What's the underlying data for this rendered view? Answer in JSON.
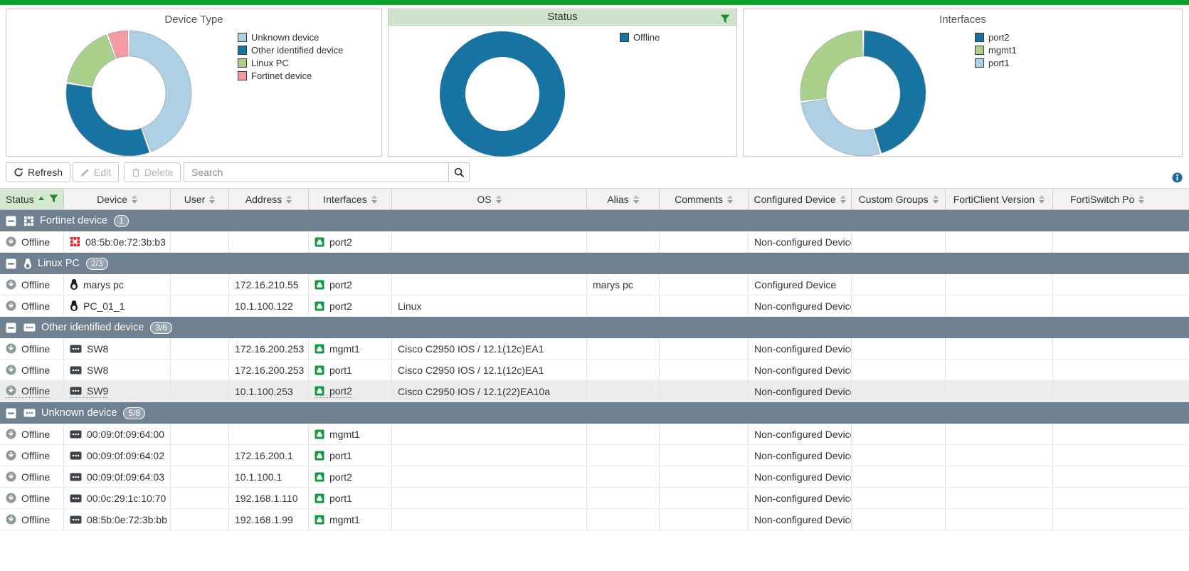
{
  "topbar": {
    "color": "#10a12d"
  },
  "charts": [
    {
      "title": "Device Type",
      "filtered": false,
      "chart_data": {
        "type": "pie",
        "donut": true,
        "slices": [
          {
            "label": "Unknown device",
            "percent": 44.4,
            "color": "#aed0e4"
          },
          {
            "label": "Other identified device",
            "percent": 33.3,
            "color": "#1773a2"
          },
          {
            "label": "Linux PC",
            "percent": 16.7,
            "color": "#a9d18c"
          },
          {
            "label": "Fortinet device",
            "percent": 5.6,
            "color": "#f59ba1"
          }
        ],
        "legend": [
          {
            "label": "Unknown device",
            "color": "#aed0e4"
          },
          {
            "label": "Other identified device",
            "color": "#1773a2"
          },
          {
            "label": "Linux PC",
            "color": "#a9d18c"
          },
          {
            "label": "Fortinet device",
            "color": "#f59ba1"
          }
        ],
        "legend_position": "right"
      }
    },
    {
      "title": "Status",
      "filtered": true,
      "chart_data": {
        "type": "pie",
        "donut": true,
        "slices": [
          {
            "label": "Offline",
            "percent": 100,
            "color": "#1773a2"
          }
        ],
        "legend": [
          {
            "label": "Offline",
            "color": "#1773a2"
          }
        ],
        "legend_position": "right"
      }
    },
    {
      "title": "Interfaces",
      "filtered": false,
      "chart_data": {
        "type": "pie",
        "donut": true,
        "slices": [
          {
            "label": "port2",
            "percent": 45.5,
            "color": "#1773a2"
          },
          {
            "label": "port1",
            "percent": 27.3,
            "color": "#aed0e4"
          },
          {
            "label": "mgmt1",
            "percent": 27.2,
            "color": "#a9d18c"
          }
        ],
        "legend": [
          {
            "label": "port2",
            "color": "#1773a2"
          },
          {
            "label": "mgmt1",
            "color": "#a9d18c"
          },
          {
            "label": "port1",
            "color": "#aed0e4"
          }
        ],
        "legend_position": "right"
      }
    }
  ],
  "toolbar": {
    "refresh_label": "Refresh",
    "edit_label": "Edit",
    "delete_label": "Delete",
    "search_placeholder": "Search",
    "search_value": ""
  },
  "table": {
    "columns": [
      {
        "key": "status",
        "label": "Status",
        "sorted": "asc",
        "filtered": true
      },
      {
        "key": "device",
        "label": "Device"
      },
      {
        "key": "user",
        "label": "User"
      },
      {
        "key": "address",
        "label": "Address"
      },
      {
        "key": "interfaces",
        "label": "Interfaces"
      },
      {
        "key": "os",
        "label": "OS"
      },
      {
        "key": "alias",
        "label": "Alias"
      },
      {
        "key": "comments",
        "label": "Comments"
      },
      {
        "key": "configured",
        "label": "Configured Device"
      },
      {
        "key": "custom_groups",
        "label": "Custom Groups"
      },
      {
        "key": "forticlient",
        "label": "FortiClient Version"
      },
      {
        "key": "fortiswitch",
        "label": "FortiSwitch Po"
      }
    ],
    "rows": [
      {
        "type": "group",
        "icon": "fortinet",
        "label": "Fortinet device",
        "badge": "1"
      },
      {
        "type": "device",
        "status": "Offline",
        "device": "08:5b:0e:72:3b:b3",
        "device_icon": "fortinet-red",
        "user": "",
        "address": "",
        "interface": "port2",
        "os": "",
        "alias": "",
        "comments": "",
        "configured": "Non-configured Device",
        "custom_groups": "",
        "forticlient": "",
        "fortiswitch": ""
      },
      {
        "type": "group",
        "icon": "linux",
        "label": "Linux PC",
        "badge": "2/3"
      },
      {
        "type": "device",
        "status": "Offline",
        "device": "marys pc",
        "device_icon": "penguin",
        "user": "",
        "address": "172.16.210.55",
        "interface": "port2",
        "os": "",
        "alias": "marys pc",
        "comments": "",
        "configured": "Configured Device",
        "custom_groups": "",
        "forticlient": "",
        "fortiswitch": ""
      },
      {
        "type": "device",
        "status": "Offline",
        "device": "PC_01_1",
        "device_icon": "penguin",
        "user": "",
        "address": "10.1.100.122",
        "interface": "port2",
        "os": "Linux",
        "alias": "",
        "comments": "",
        "configured": "Non-configured Device",
        "custom_groups": "",
        "forticlient": "",
        "fortiswitch": ""
      },
      {
        "type": "group",
        "icon": "switch",
        "label": "Other identified device",
        "badge": "3/6"
      },
      {
        "type": "device",
        "status": "Offline",
        "device": "SW8",
        "device_icon": "switch",
        "user": "",
        "address": "172.16.200.253",
        "interface": "mgmt1",
        "os": "Cisco C2950 IOS / 12.1(12c)EA1",
        "alias": "",
        "comments": "",
        "configured": "Non-configured Device",
        "custom_groups": "",
        "forticlient": "",
        "fortiswitch": ""
      },
      {
        "type": "device",
        "status": "Offline",
        "device": "SW8",
        "device_icon": "switch",
        "user": "",
        "address": "172.16.200.253",
        "interface": "port1",
        "os": "Cisco C2950 IOS / 12.1(12c)EA1",
        "alias": "",
        "comments": "",
        "configured": "Non-configured Device",
        "custom_groups": "",
        "forticlient": "",
        "fortiswitch": ""
      },
      {
        "type": "device",
        "status": "Offline",
        "device": "SW9",
        "device_icon": "switch",
        "hovered": true,
        "user": "",
        "address": "10.1.100.253",
        "interface": "port2",
        "os": "Cisco C2950 IOS / 12.1(22)EA10a",
        "alias": "",
        "comments": "",
        "configured": "Non-configured Device",
        "custom_groups": "",
        "forticlient": "",
        "fortiswitch": ""
      },
      {
        "type": "group",
        "icon": "switch",
        "label": "Unknown device",
        "badge": "5/8"
      },
      {
        "type": "device",
        "status": "Offline",
        "device": "00:09:0f:09:64:00",
        "device_icon": "switch",
        "user": "",
        "address": "",
        "interface": "mgmt1",
        "os": "",
        "alias": "",
        "comments": "",
        "configured": "Non-configured Device",
        "custom_groups": "",
        "forticlient": "",
        "fortiswitch": ""
      },
      {
        "type": "device",
        "status": "Offline",
        "device": "00:09:0f:09:64:02",
        "device_icon": "switch",
        "user": "",
        "address": "172.16.200.1",
        "interface": "port1",
        "os": "",
        "alias": "",
        "comments": "",
        "configured": "Non-configured Device",
        "custom_groups": "",
        "forticlient": "",
        "fortiswitch": ""
      },
      {
        "type": "device",
        "status": "Offline",
        "device": "00:09:0f:09:64:03",
        "device_icon": "switch",
        "user": "",
        "address": "10.1.100.1",
        "interface": "port2",
        "os": "",
        "alias": "",
        "comments": "",
        "configured": "Non-configured Device",
        "custom_groups": "",
        "forticlient": "",
        "fortiswitch": ""
      },
      {
        "type": "device",
        "status": "Offline",
        "device": "00:0c:29:1c:10:70",
        "device_icon": "switch",
        "user": "",
        "address": "192.168.1.110",
        "interface": "port1",
        "os": "",
        "alias": "",
        "comments": "",
        "configured": "Non-configured Device",
        "custom_groups": "",
        "forticlient": "",
        "fortiswitch": ""
      },
      {
        "type": "device",
        "status": "Offline",
        "device": "08:5b:0e:72:3b:bb",
        "device_icon": "switch",
        "user": "",
        "address": "192.168.1.99",
        "interface": "mgmt1",
        "os": "",
        "alias": "",
        "comments": "",
        "configured": "Non-configured Device",
        "custom_groups": "",
        "forticlient": "",
        "fortiswitch": ""
      }
    ]
  },
  "colors": {
    "accent_green": "#10a12d",
    "filter_green": "#1d8c31",
    "panel_header_green": "#cfe3cc",
    "group_row": "#6f8090",
    "donut_blue": "#1773a2",
    "donut_light_blue": "#aed0e4",
    "donut_green": "#a9d18c",
    "donut_pink": "#f59ba1",
    "fortinet_red": "#e02128",
    "interface_green": "#0f9a40",
    "offline_gray": "#8f99a0",
    "info_blue": "#1c6d9c"
  }
}
